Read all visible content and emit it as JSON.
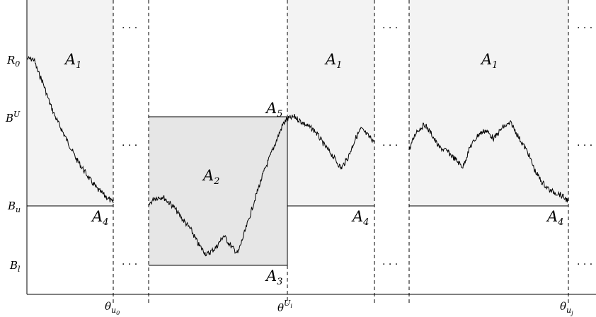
{
  "y_labels": {
    "r0": {
      "base": "R",
      "sub": "0"
    },
    "bU": {
      "base": "B",
      "sup": "U"
    },
    "bu": {
      "base": "B",
      "sub": "u"
    },
    "bl": {
      "base": "B",
      "sub": "l"
    }
  },
  "x_labels": {
    "theta_u0": {
      "base": "θ",
      "sub": "u",
      "subsub": "0"
    },
    "theta_Ui": {
      "base": "θ",
      "sup": "U",
      "supsub": "i"
    },
    "theta_uj": {
      "base": "θ",
      "sub": "u",
      "subsub": "j"
    }
  },
  "regions": {
    "a1_left": {
      "base": "A",
      "sub": "1"
    },
    "a1_mid": {
      "base": "A",
      "sub": "1"
    },
    "a1_right": {
      "base": "A",
      "sub": "1"
    },
    "a2": {
      "base": "A",
      "sub": "2"
    },
    "a3": {
      "base": "A",
      "sub": "3"
    },
    "a4_left": {
      "base": "A",
      "sub": "4"
    },
    "a4_mid": {
      "base": "A",
      "sub": "4"
    },
    "a4_right": {
      "base": "A",
      "sub": "4"
    },
    "a5": {
      "base": "A",
      "sub": "5"
    }
  },
  "ellipsis": "· · ·",
  "colors": {
    "light_fill": "#f3f3f3",
    "mid_fill": "#e6e6e6",
    "line": "#000000"
  }
}
